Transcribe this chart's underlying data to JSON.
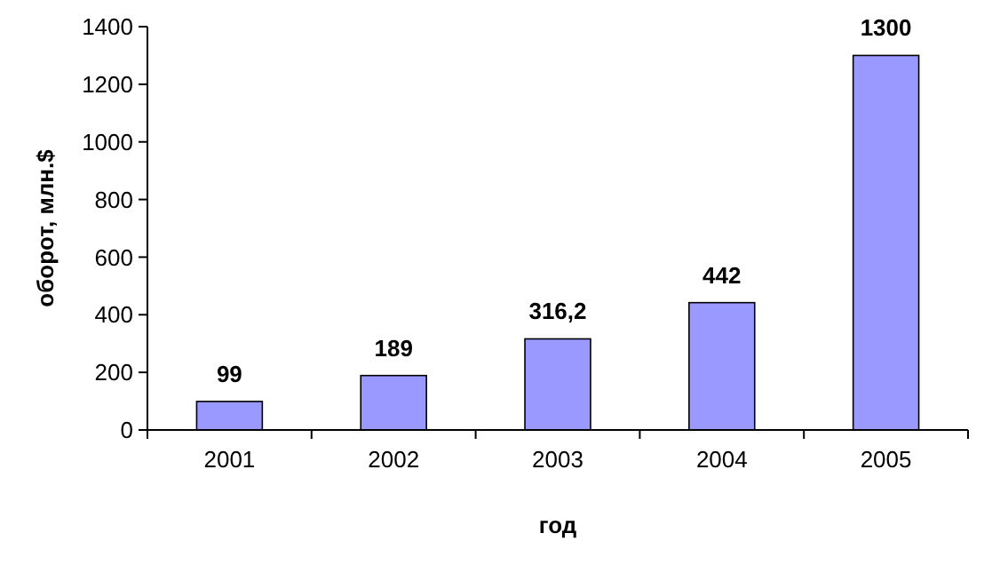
{
  "chart_data": {
    "type": "bar",
    "xlabel": "год",
    "ylabel": "оборот, млн.$",
    "categories": [
      "2001",
      "2002",
      "2003",
      "2004",
      "2005"
    ],
    "values": [
      99,
      189,
      316.2,
      442,
      1300
    ],
    "value_labels": [
      "99",
      "189",
      "316,2",
      "442",
      "1300"
    ],
    "color": "#9999ff",
    "ylim": [
      0,
      1400
    ],
    "yticks": [
      0,
      200,
      400,
      600,
      800,
      1000,
      1200,
      1400
    ],
    "grid": false
  }
}
